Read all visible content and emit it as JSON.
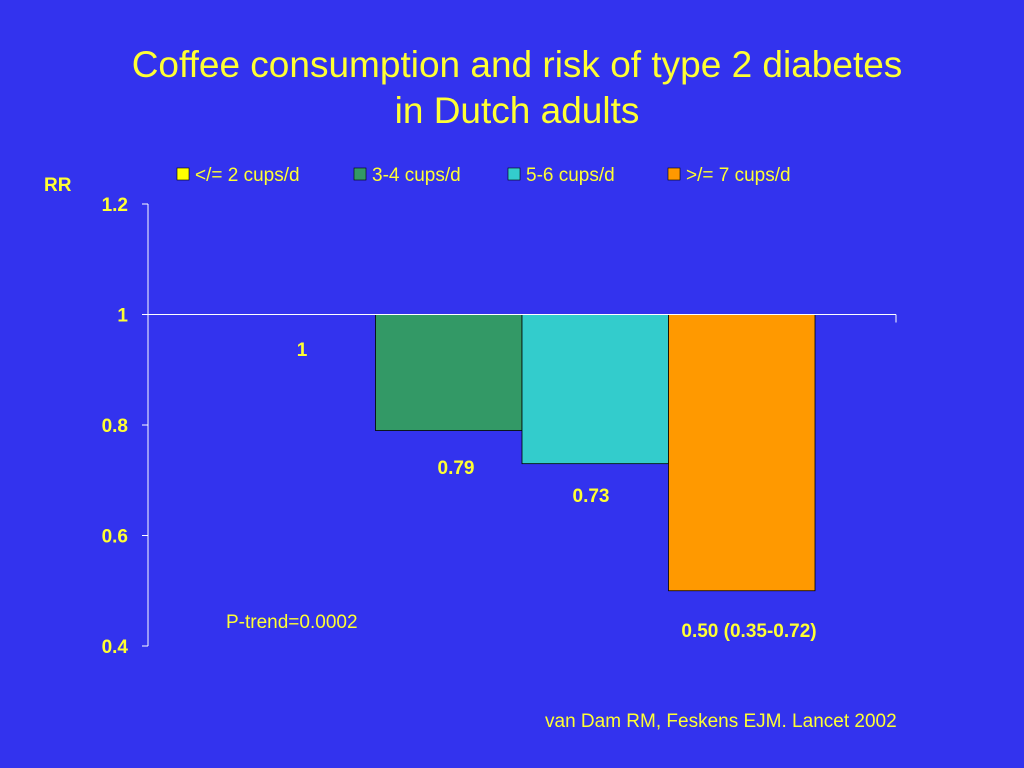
{
  "slide": {
    "title_line1": "Coffee consumption and risk of type 2 diabetes",
    "title_line2": "in Dutch adults",
    "citation": "van Dam RM, Feskens EJM. Lancet 2002"
  },
  "colors": {
    "background": "#3333ee",
    "text": "#ffff33",
    "axis": "#ffffff"
  },
  "chart_data": {
    "type": "bar",
    "ylabel": "RR",
    "ylim": [
      0.4,
      1.2
    ],
    "baseline": 1,
    "yticks": [
      "1.2",
      "1",
      "0.8",
      "0.6",
      "0.4"
    ],
    "ytick_values": [
      1.2,
      1.0,
      0.8,
      0.6,
      0.4
    ],
    "grid": false,
    "legend_position": "top",
    "series": [
      {
        "name": "</= 2 cups/d",
        "value": 1.0,
        "color": "#ffff00",
        "label": "1"
      },
      {
        "name": "3-4 cups/d",
        "value": 0.79,
        "color": "#339966",
        "label": "0.79"
      },
      {
        "name": "5-6 cups/d",
        "value": 0.73,
        "color": "#33cccc",
        "label": "0.73"
      },
      {
        "name": ">/= 7 cups/d",
        "value": 0.5,
        "color": "#ff9900",
        "label": "0.50 (0.35-0.72)"
      }
    ],
    "annotation": "P-trend=0.0002"
  }
}
